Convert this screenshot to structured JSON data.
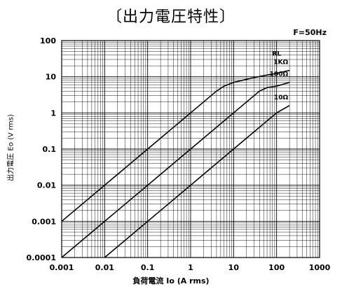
{
  "chart_data": {
    "type": "line",
    "title": "〔出力電圧特性〕",
    "condition": "F=50Hz",
    "xlabel": "負荷電流 Io (A rms)",
    "ylabel": "出力電圧 Eo (V rms)",
    "x_scale": "log",
    "y_scale": "log",
    "xlim": [
      0.001,
      1000
    ],
    "ylim": [
      0.0001,
      100
    ],
    "x_ticks": [
      "0.001",
      "0.01",
      "0.1",
      "1",
      "10",
      "100",
      "1000"
    ],
    "y_ticks": [
      "100",
      "10",
      "1",
      "0.1",
      "0.01",
      "0.001",
      "0.0001"
    ],
    "grid": true,
    "legend_title": "RL",
    "series": [
      {
        "name": "1KΩ",
        "x": [
          0.001,
          0.01,
          0.1,
          1,
          4,
          6,
          10,
          30,
          100,
          200
        ],
        "y": [
          0.001,
          0.01,
          0.1,
          1,
          4,
          5.5,
          7,
          9.5,
          12.5,
          15
        ]
      },
      {
        "name": "100Ω",
        "x": [
          0.001,
          0.01,
          0.1,
          1,
          10,
          40,
          60,
          100,
          200
        ],
        "y": [
          0.0001,
          0.001,
          0.01,
          0.1,
          1,
          4,
          5,
          5.5,
          7
        ]
      },
      {
        "name": "10Ω",
        "x": [
          0.01,
          0.1,
          1,
          10,
          100,
          200
        ],
        "y": [
          0.0001,
          0.001,
          0.01,
          0.1,
          1,
          1.6
        ]
      }
    ]
  }
}
